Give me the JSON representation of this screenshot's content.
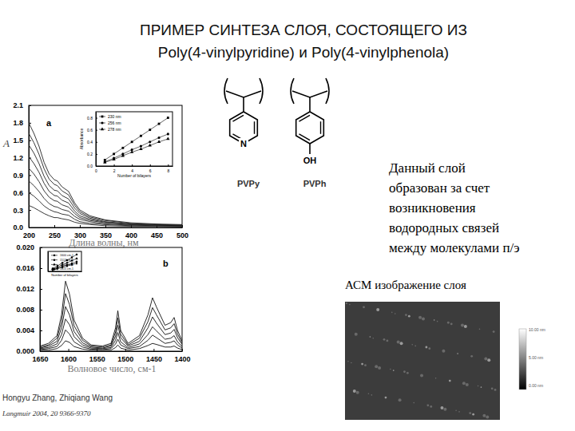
{
  "slide": {
    "title": [
      "ПРИМЕР СИНТЕЗА СЛОЯ, СОСТОЯЩЕГО ИЗ",
      "Poly(4-vinylpyridine) и Poly(4-vinylphenola)"
    ],
    "description": [
      "Данный слой",
      "образован за счет",
      "возникновения",
      "водородных связей",
      "между молекулами п/э"
    ],
    "citation": [
      "Hongyu Zhang, Zhiqiang Wang",
      "Langmuir 2004, 20 9366-9370"
    ]
  },
  "structures": [
    {
      "label": "PVPy",
      "atom": "N"
    },
    {
      "label": "PVPh",
      "atom": "OH"
    }
  ],
  "afm": {
    "caption": "АСМ изображение слоя",
    "colorbar_labels": [
      "10.00 nm",
      "5.00 nm",
      "0.00 nm"
    ]
  },
  "chart_data": [
    {
      "type": "line",
      "annotations": [
        "a"
      ],
      "x_label": "Длина волны, нм",
      "y_label": "A",
      "x": [
        200,
        210,
        220,
        230,
        240,
        250,
        256,
        265,
        278,
        290,
        300,
        320,
        350,
        400,
        450,
        500
      ],
      "xlim": [
        200,
        500
      ],
      "ylim": [
        0,
        2.1
      ],
      "xticks": [
        200,
        250,
        300,
        350,
        400,
        450,
        500
      ],
      "yticks": [
        {
          "value": 0,
          "label": "0.0"
        },
        0.3,
        0.6,
        0.9,
        1.2,
        1.5,
        1.8,
        2.1
      ],
      "grid": false,
      "series": [
        {
          "color": "#222222",
          "values": [
            1.8,
            1.62,
            1.4,
            1.12,
            0.92,
            0.82,
            0.8,
            0.7,
            0.62,
            0.42,
            0.3,
            0.2,
            0.13,
            0.08,
            0.06,
            0.05
          ]
        },
        {
          "color": "#222222",
          "values": [
            1.62,
            1.46,
            1.26,
            1.01,
            0.83,
            0.74,
            0.72,
            0.63,
            0.56,
            0.38,
            0.27,
            0.18,
            0.12,
            0.07,
            0.05,
            0.04
          ]
        },
        {
          "color": "#222222",
          "values": [
            1.42,
            1.28,
            1.1,
            0.88,
            0.72,
            0.64,
            0.63,
            0.55,
            0.49,
            0.33,
            0.24,
            0.16,
            0.1,
            0.06,
            0.05,
            0.04
          ]
        },
        {
          "color": "#222222",
          "values": [
            1.22,
            1.1,
            0.95,
            0.76,
            0.62,
            0.55,
            0.54,
            0.47,
            0.42,
            0.28,
            0.2,
            0.14,
            0.09,
            0.05,
            0.04,
            0.03
          ]
        },
        {
          "color": "#222222",
          "values": [
            1.02,
            0.92,
            0.79,
            0.63,
            0.52,
            0.46,
            0.45,
            0.39,
            0.35,
            0.24,
            0.17,
            0.12,
            0.08,
            0.05,
            0.04,
            0.03
          ]
        },
        {
          "color": "#222222",
          "values": [
            0.8,
            0.72,
            0.62,
            0.5,
            0.41,
            0.36,
            0.35,
            0.31,
            0.28,
            0.19,
            0.14,
            0.1,
            0.06,
            0.04,
            0.03,
            0.02
          ]
        },
        {
          "color": "#222222",
          "values": [
            0.6,
            0.54,
            0.46,
            0.37,
            0.31,
            0.27,
            0.26,
            0.23,
            0.21,
            0.14,
            0.1,
            0.07,
            0.05,
            0.03,
            0.02,
            0.02
          ]
        },
        {
          "color": "#222222",
          "values": [
            0.38,
            0.34,
            0.29,
            0.24,
            0.2,
            0.17,
            0.17,
            0.15,
            0.13,
            0.09,
            0.07,
            0.05,
            0.03,
            0.02,
            0.02,
            0.01
          ]
        }
      ]
    },
    {
      "type": "line",
      "x_label": "Number of bilayers",
      "y_label": "Absorbance",
      "x": [
        1,
        2,
        3,
        4,
        5,
        6,
        7,
        8
      ],
      "xlim": [
        0,
        8.5
      ],
      "ylim": [
        0,
        0.9
      ],
      "xticks": [
        0,
        2,
        4,
        6,
        8
      ],
      "yticks": [
        {
          "value": 0,
          "label": "0.0"
        },
        0.2,
        0.4,
        0.6,
        0.8
      ],
      "grid": false,
      "legend": "top-left",
      "series": [
        {
          "name": "230 nm",
          "color": "#000000",
          "marker": "square",
          "values": [
            0.1,
            0.2,
            0.3,
            0.4,
            0.5,
            0.6,
            0.7,
            0.8
          ]
        },
        {
          "name": "256 nm",
          "color": "#000000",
          "marker": "circle",
          "values": [
            0.07,
            0.13,
            0.2,
            0.27,
            0.33,
            0.4,
            0.47,
            0.53
          ]
        },
        {
          "name": "278 nm",
          "color": "#000000",
          "marker": "triangle",
          "values": [
            0.06,
            0.11,
            0.17,
            0.23,
            0.28,
            0.34,
            0.4,
            0.45
          ]
        }
      ]
    },
    {
      "type": "line",
      "annotations": [
        "b"
      ],
      "x_label": "Волновое число, см-1",
      "x": [
        1650,
        1635,
        1620,
        1612,
        1605,
        1598,
        1590,
        1575,
        1560,
        1540,
        1525,
        1517,
        1513,
        1508,
        1495,
        1475,
        1460,
        1452,
        1445,
        1430,
        1420,
        1414,
        1408,
        1400
      ],
      "xlim": [
        1650,
        1400
      ],
      "ylim": [
        0,
        0.02
      ],
      "xticks": [
        1650,
        1600,
        1550,
        1500,
        1450,
        1400
      ],
      "yticks": [
        {
          "value": 0,
          "label": "0.000"
        },
        0.004,
        0.008,
        0.012,
        0.016,
        {
          "value": 0.02,
          "label": "0.020"
        }
      ],
      "grid": false,
      "series": [
        {
          "color": "#111111",
          "values": [
            0.001,
            0.0015,
            0.003,
            0.007,
            0.0135,
            0.011,
            0.006,
            0.0025,
            0.0012,
            0.001,
            0.0015,
            0.0045,
            0.0078,
            0.004,
            0.0015,
            0.003,
            0.007,
            0.0103,
            0.0085,
            0.005,
            0.0055,
            0.0065,
            0.004,
            0.002
          ]
        },
        {
          "color": "#111111",
          "values": [
            0.0008,
            0.0012,
            0.0025,
            0.0057,
            0.0111,
            0.009,
            0.0049,
            0.0021,
            0.001,
            0.0008,
            0.0012,
            0.0037,
            0.0064,
            0.0033,
            0.0012,
            0.0025,
            0.0057,
            0.0084,
            0.007,
            0.0041,
            0.0045,
            0.0053,
            0.0033,
            0.0016
          ]
        },
        {
          "color": "#111111",
          "values": [
            0.0006,
            0.001,
            0.0019,
            0.0045,
            0.0086,
            0.007,
            0.0038,
            0.0016,
            0.0008,
            0.0006,
            0.001,
            0.0029,
            0.005,
            0.0026,
            0.001,
            0.0019,
            0.0045,
            0.0066,
            0.0054,
            0.0032,
            0.0035,
            0.0042,
            0.0026,
            0.0013
          ]
        },
        {
          "color": "#111111",
          "values": [
            0.0005,
            0.0007,
            0.0014,
            0.0032,
            0.0062,
            0.0051,
            0.0028,
            0.0012,
            0.0006,
            0.0005,
            0.0007,
            0.0021,
            0.0036,
            0.0018,
            0.0007,
            0.0014,
            0.0032,
            0.0047,
            0.0039,
            0.0023,
            0.0025,
            0.003,
            0.0018,
            0.0009
          ]
        },
        {
          "color": "#111111",
          "values": [
            0.0003,
            0.0005,
            0.0009,
            0.0021,
            0.0041,
            0.0033,
            0.0018,
            0.0008,
            0.0004,
            0.0003,
            0.0005,
            0.0014,
            0.0023,
            0.0012,
            0.0005,
            0.0009,
            0.0021,
            0.0031,
            0.0026,
            0.0015,
            0.0017,
            0.002,
            0.0012,
            0.0006
          ]
        },
        {
          "color": "#111111",
          "values": [
            0.0002,
            0.0002,
            0.0005,
            0.0011,
            0.002,
            0.0017,
            0.0009,
            0.0004,
            0.0002,
            0.0002,
            0.0002,
            0.0007,
            0.0012,
            0.0006,
            0.0002,
            0.0005,
            0.0011,
            0.0015,
            0.0013,
            0.0008,
            0.0008,
            0.001,
            0.0006,
            0.0003
          ]
        }
      ]
    },
    {
      "type": "line",
      "x_label": "Number of bilayers",
      "x": [
        1,
        2,
        3,
        4,
        5,
        6
      ],
      "xlim": [
        0,
        7
      ],
      "ylim": [
        0,
        0.016
      ],
      "tick_labels": false,
      "grid": false,
      "legend": "top-left",
      "series": [
        {
          "name": "1600 cm-1",
          "color": "#000000",
          "marker": "square",
          "values": [
            0.0023,
            0.0045,
            0.0068,
            0.009,
            0.0112,
            0.0135
          ]
        },
        {
          "name": "1513 cm-1",
          "color": "#000000",
          "marker": "circle",
          "values": [
            0.0013,
            0.0026,
            0.0039,
            0.0052,
            0.0064,
            0.0078
          ]
        },
        {
          "name": "1450 cm-1",
          "color": "#000000",
          "marker": "triangle",
          "values": [
            0.0017,
            0.0034,
            0.0052,
            0.0069,
            0.0086,
            0.0103
          ]
        },
        {
          "name": "1415 cm-1",
          "color": "#000000",
          "marker": "diamond",
          "values": [
            0.0011,
            0.0022,
            0.0033,
            0.0043,
            0.0054,
            0.0065
          ]
        }
      ]
    }
  ]
}
